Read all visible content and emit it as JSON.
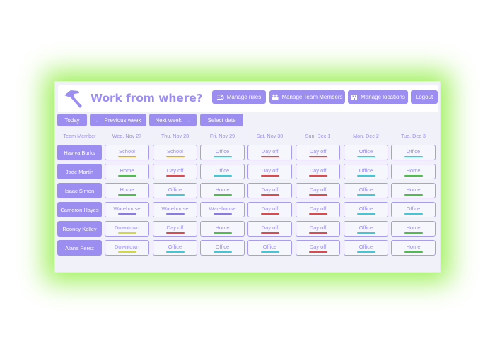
{
  "app": {
    "title": "Work from where?"
  },
  "header_buttons": [
    {
      "label": "Manage rules",
      "icon": "rules-icon"
    },
    {
      "label": "Manage Team Members",
      "icon": "team-icon"
    },
    {
      "label": "Manage locations",
      "icon": "building-icon"
    },
    {
      "label": "Logout",
      "icon": ""
    }
  ],
  "nav": {
    "today": "Today",
    "previous": "Previous week",
    "next": "Next week",
    "select_date": "Select date",
    "previous_arrow": "←",
    "next_arrow": "→"
  },
  "table": {
    "member_header": "Team Member",
    "days": [
      "Wed, Nov 27",
      "Thu, Nov 28",
      "Fri, Nov 29",
      "Sat, Nov 30",
      "Sun, Dec 1",
      "Mon, Dec 2",
      "Tue, Dec 3"
    ],
    "rows": [
      {
        "member": "Haviva Burks",
        "locations": [
          "School",
          "School",
          "Office",
          "Day off",
          "Day off",
          "Office",
          "Office"
        ]
      },
      {
        "member": "Jade Martin",
        "locations": [
          "Home",
          "Day off",
          "Office",
          "Day off",
          "Day off",
          "Office",
          "Home"
        ]
      },
      {
        "member": "Isaac Simon",
        "locations": [
          "Home",
          "Office",
          "Home",
          "Day off",
          "Day off",
          "Office",
          "Home"
        ]
      },
      {
        "member": "Cameron Hayes",
        "locations": [
          "Warehouse",
          "Warehouse",
          "Warehouse",
          "Day off",
          "Day off",
          "Office",
          "Office"
        ]
      },
      {
        "member": "Rooney Kelley",
        "locations": [
          "Downtown",
          "Day off",
          "Home",
          "Day off",
          "Day off",
          "Office",
          "Home"
        ]
      },
      {
        "member": "Alana Perez",
        "locations": [
          "Downtown",
          "Office",
          "Office",
          "Office",
          "Day off",
          "Office",
          "Home"
        ]
      }
    ]
  },
  "location_colors": {
    "School": "#e8a23a",
    "Office": "#3fc8d6",
    "Day off": "#e0484d",
    "Home": "#4cbf4a",
    "Warehouse": "#8b79e8",
    "Downtown": "#d3d93a"
  },
  "colors": {
    "accent": "#9c8df0",
    "glow": "#82eb28",
    "background": "#f1f2f9"
  }
}
